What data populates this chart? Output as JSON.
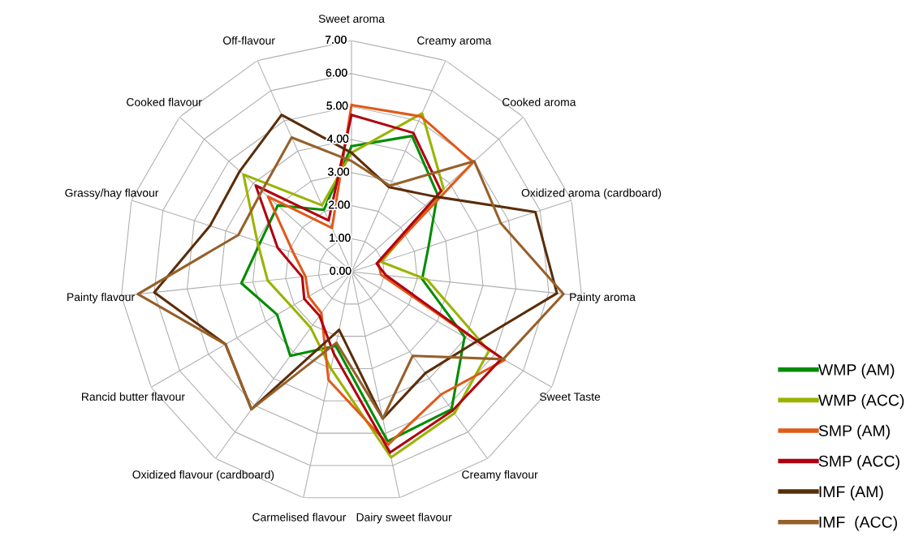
{
  "chart_data": {
    "type": "radar",
    "categories": [
      "Sweet aroma",
      "Creamy aroma",
      "Cooked aroma",
      "Oxidized aroma (cardboard)",
      "Painty aroma",
      "Sweet Taste",
      "Creamy flavour",
      "Dairy sweet flavour",
      "Carmelised flavour",
      "Oxidized flavour (cardboard)",
      "Rancid butter flavour",
      "Painty flavour",
      "Grassy/hay flavour",
      "Cooked flavour",
      "Off-flavour"
    ],
    "series": [
      {
        "name": "WMP (AM)",
        "color": "#008c00",
        "values": [
          3.8,
          4.5,
          3.5,
          2.45,
          2.15,
          3.95,
          5.15,
          5.25,
          2.3,
          3.15,
          2.6,
          3.35,
          2.9,
          3.0,
          2.05
        ]
      },
      {
        "name": "WMP (ACC)",
        "color": "#9ab300",
        "values": [
          3.6,
          5.25,
          3.75,
          0.95,
          2.3,
          4.8,
          5.3,
          5.75,
          3.0,
          2.1,
          2.1,
          2.55,
          3.0,
          4.4,
          2.2
        ]
      },
      {
        "name": "SMP (AM)",
        "color": "#e05a1a",
        "values": [
          5.05,
          5.15,
          4.95,
          0.85,
          0.9,
          5.35,
          4.6,
          5.35,
          3.35,
          1.55,
          1.5,
          1.4,
          1.85,
          3.4,
          1.45
        ]
      },
      {
        "name": "SMP (ACC)",
        "color": "#b00010",
        "values": [
          4.75,
          4.6,
          3.65,
          0.8,
          1.05,
          5.25,
          5.2,
          5.6,
          2.55,
          1.65,
          1.65,
          1.5,
          2.35,
          3.9,
          1.7
        ]
      },
      {
        "name": "IMF (AM)",
        "color": "#5a2d0a",
        "values": [
          3.6,
          2.8,
          3.4,
          5.85,
          6.25,
          4.3,
          3.8,
          4.55,
          1.8,
          5.15,
          4.4,
          6.0,
          4.5,
          4.55,
          5.2
        ]
      },
      {
        "name": "IMF  (ACC)",
        "color": "#96602a",
        "values": [
          3.35,
          2.85,
          5.0,
          4.75,
          6.45,
          5.3,
          3.15,
          4.55,
          2.2,
          5.15,
          4.4,
          6.5,
          3.6,
          3.65,
          4.45
        ]
      }
    ],
    "ylim": [
      0,
      7
    ],
    "yticks": [
      {
        "value": 0,
        "label": "0.00"
      },
      {
        "value": 1,
        "label": "1.00"
      },
      {
        "value": 2,
        "label": "2.00"
      },
      {
        "value": 3,
        "label": "3.00"
      },
      {
        "value": 4,
        "label": "4.00"
      },
      {
        "value": 5,
        "label": "5.00"
      },
      {
        "value": 6,
        "label": "6.00"
      },
      {
        "value": 7,
        "label": "7.00"
      }
    ],
    "grid": true,
    "legend": "bottom right",
    "marker": "none",
    "line_style": "solid"
  }
}
